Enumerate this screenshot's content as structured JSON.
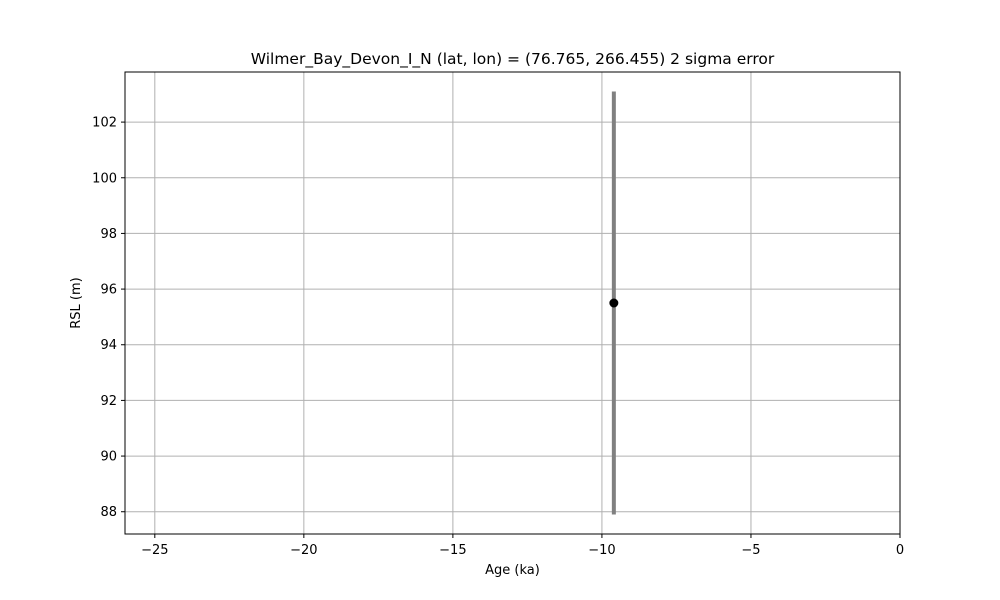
{
  "chart_data": {
    "type": "scatter",
    "title": "Wilmer_Bay_Devon_I_N (lat, lon) = (76.765, 266.455)  2 sigma error",
    "xlabel": "Age (ka)",
    "ylabel": "RSL (m)",
    "xlim": [
      -26,
      0
    ],
    "ylim": [
      87.2,
      103.8
    ],
    "xticks": [
      -25,
      -20,
      -15,
      -10,
      -5,
      0
    ],
    "xtick_labels": [
      "−25",
      "−20",
      "−15",
      "−10",
      "−5",
      "0"
    ],
    "yticks": [
      88,
      90,
      92,
      94,
      96,
      98,
      100,
      102
    ],
    "ytick_labels": [
      "88",
      "90",
      "92",
      "94",
      "96",
      "98",
      "100",
      "102"
    ],
    "grid": true,
    "points": [
      {
        "x": -9.6,
        "y": 95.5,
        "yerr_low": 87.9,
        "yerr_high": 103.1
      }
    ],
    "colors": {
      "marker": "#000000",
      "errorbar": "#808080",
      "grid": "#b0b0b0",
      "axes": "#000000"
    }
  }
}
